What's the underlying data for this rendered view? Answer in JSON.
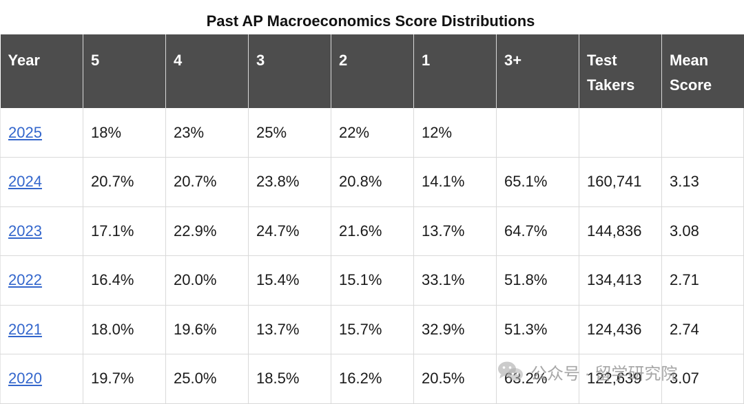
{
  "title": "Past AP Macroeconomics Score Distributions",
  "headers": [
    "Year",
    "5",
    "4",
    "3",
    "2",
    "1",
    "3+",
    "Test Takers",
    "Mean Score"
  ],
  "rows": [
    {
      "year": "2025",
      "s5": "18%",
      "s4": "23%",
      "s3": "25%",
      "s2": "22%",
      "s1": "12%",
      "s3plus": "",
      "takers": "",
      "mean": ""
    },
    {
      "year": "2024",
      "s5": "20.7%",
      "s4": "20.7%",
      "s3": "23.8%",
      "s2": "20.8%",
      "s1": "14.1%",
      "s3plus": "65.1%",
      "takers": "160,741",
      "mean": "3.13"
    },
    {
      "year": "2023",
      "s5": "17.1%",
      "s4": "22.9%",
      "s3": "24.7%",
      "s2": "21.6%",
      "s1": "13.7%",
      "s3plus": "64.7%",
      "takers": "144,836",
      "mean": "3.08"
    },
    {
      "year": "2022",
      "s5": "16.4%",
      "s4": "20.0%",
      "s3": "15.4%",
      "s2": "15.1%",
      "s1": "33.1%",
      "s3plus": "51.8%",
      "takers": "134,413",
      "mean": "2.71"
    },
    {
      "year": "2021",
      "s5": "18.0%",
      "s4": "19.6%",
      "s3": "13.7%",
      "s2": "15.7%",
      "s1": "32.9%",
      "s3plus": "51.3%",
      "takers": "124,436",
      "mean": "2.74"
    },
    {
      "year": "2020",
      "s5": "19.7%",
      "s4": "25.0%",
      "s3": "18.5%",
      "s2": "16.2%",
      "s1": "20.5%",
      "s3plus": "63.2%",
      "takers": "122,639",
      "mean": "3.07"
    }
  ],
  "watermark": {
    "icon": "wechat-icon",
    "text": "公众号 · 留学研究院"
  },
  "colors": {
    "header_bg": "#4d4d4d",
    "header_text": "#ffffff",
    "link": "#3366cc",
    "grid": "#d9d9d9"
  }
}
